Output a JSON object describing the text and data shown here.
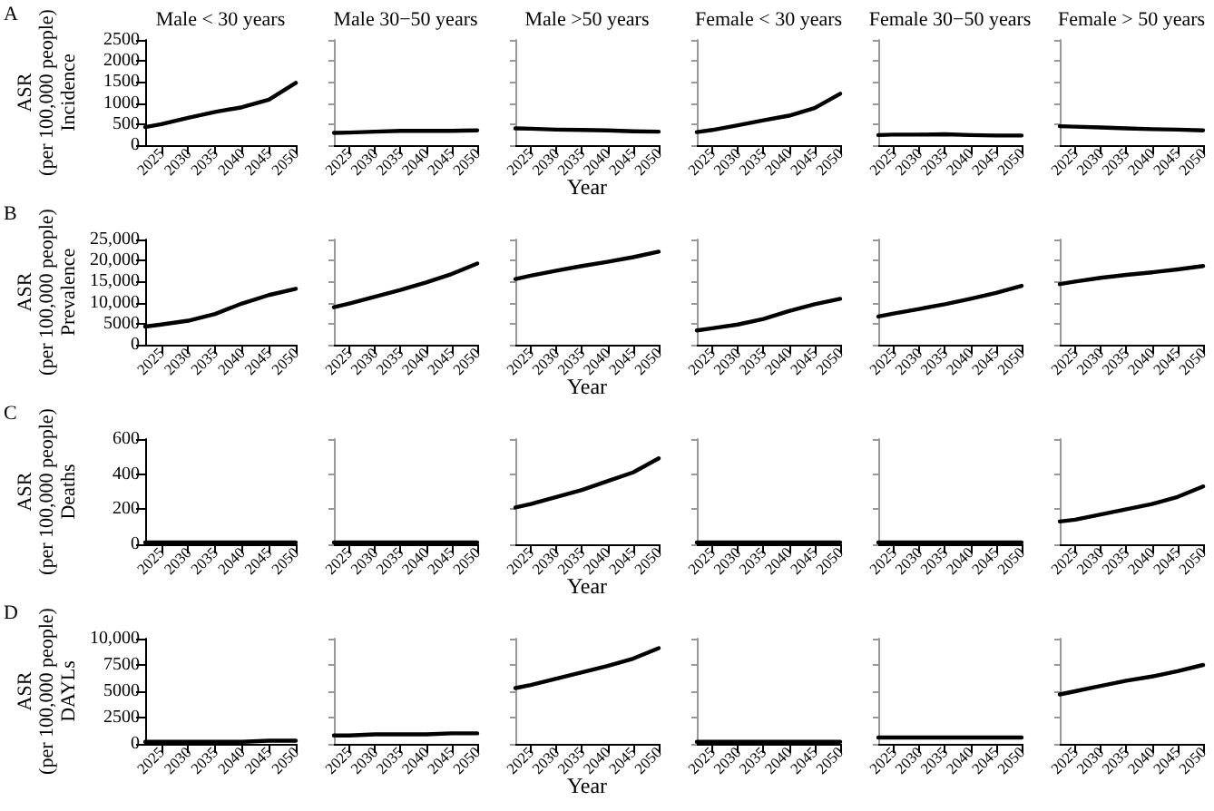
{
  "chart_data": [
    {
      "type": "line",
      "title": "Male < 30 years",
      "ylabel": "ASR\n(per 100,000 people)\nIncidence",
      "annotations": [
        "A"
      ],
      "x": [
        2022,
        2025,
        2030,
        2035,
        2040,
        2045,
        2050
      ],
      "values": [
        430,
        500,
        650,
        790,
        900,
        1080,
        1480
      ],
      "color": "#000000",
      "marker": "none",
      "xlim": [
        2022,
        2050
      ],
      "xticks": [
        2025,
        2030,
        2035,
        2040,
        2045,
        2050
      ],
      "ylim": [
        0,
        2500
      ],
      "yticks": [
        0,
        500,
        1000,
        1500,
        2000,
        2500
      ]
    },
    {
      "type": "line",
      "title": "Male 30−50 years",
      "x": [
        2022,
        2025,
        2030,
        2035,
        2040,
        2045,
        2050
      ],
      "values": [
        290,
        300,
        320,
        340,
        340,
        340,
        350
      ],
      "color": "#000000",
      "marker": "none",
      "xlim": [
        2022,
        2050
      ],
      "xticks": [
        2025,
        2030,
        2035,
        2040,
        2045,
        2050
      ],
      "ylim": [
        0,
        2500
      ],
      "yticks": [
        0,
        500,
        1000,
        1500,
        2000,
        2500
      ],
      "tick_labels": "x"
    },
    {
      "type": "line",
      "title": "Male >50 years",
      "xlabel": "Year",
      "x": [
        2022,
        2025,
        2030,
        2035,
        2040,
        2045,
        2050
      ],
      "values": [
        400,
        390,
        370,
        360,
        350,
        330,
        320
      ],
      "color": "#000000",
      "marker": "none",
      "xlim": [
        2022,
        2050
      ],
      "xticks": [
        2025,
        2030,
        2035,
        2040,
        2045,
        2050
      ],
      "ylim": [
        0,
        2500
      ],
      "yticks": [
        0,
        500,
        1000,
        1500,
        2000,
        2500
      ],
      "tick_labels": "x"
    },
    {
      "type": "line",
      "title": "Female < 30 years",
      "x": [
        2022,
        2025,
        2030,
        2035,
        2040,
        2045,
        2050
      ],
      "values": [
        310,
        360,
        470,
        590,
        700,
        880,
        1220
      ],
      "color": "#000000",
      "marker": "none",
      "xlim": [
        2022,
        2050
      ],
      "xticks": [
        2025,
        2030,
        2035,
        2040,
        2045,
        2050
      ],
      "ylim": [
        0,
        2500
      ],
      "yticks": [
        0,
        500,
        1000,
        1500,
        2000,
        2500
      ],
      "tick_labels": "x"
    },
    {
      "type": "line",
      "title": "Female 30−50 years",
      "x": [
        2022,
        2025,
        2030,
        2035,
        2040,
        2045,
        2050
      ],
      "values": [
        240,
        250,
        250,
        260,
        240,
        230,
        230
      ],
      "color": "#000000",
      "marker": "none",
      "xlim": [
        2022,
        2050
      ],
      "xticks": [
        2025,
        2030,
        2035,
        2040,
        2045,
        2050
      ],
      "ylim": [
        0,
        2500
      ],
      "yticks": [
        0,
        500,
        1000,
        1500,
        2000,
        2500
      ],
      "tick_labels": "x"
    },
    {
      "type": "line",
      "title": "Female > 50 years",
      "x": [
        2022,
        2025,
        2030,
        2035,
        2040,
        2045,
        2050
      ],
      "values": [
        450,
        440,
        420,
        400,
        380,
        370,
        350
      ],
      "color": "#000000",
      "marker": "none",
      "xlim": [
        2022,
        2050
      ],
      "xticks": [
        2025,
        2030,
        2035,
        2040,
        2045,
        2050
      ],
      "ylim": [
        0,
        2500
      ],
      "yticks": [
        0,
        500,
        1000,
        1500,
        2000,
        2500
      ],
      "tick_labels": "x"
    },
    {
      "type": "line",
      "ylabel": "ASR\n(per 100,000 people)\nPrevalence",
      "annotations": [
        "B"
      ],
      "x": [
        2022,
        2025,
        2030,
        2035,
        2040,
        2045,
        2050
      ],
      "values": [
        4300,
        4800,
        5700,
        7300,
        9800,
        11800,
        13300
      ],
      "color": "#000000",
      "marker": "none",
      "xlim": [
        2022,
        2050
      ],
      "xticks": [
        2025,
        2030,
        2035,
        2040,
        2045,
        2050
      ],
      "ylim": [
        0,
        25000
      ],
      "yticks": [
        0,
        5000,
        {
          "value": 10000,
          "label": "10,000"
        },
        {
          "value": 15000,
          "label": "15,000"
        },
        {
          "value": 20000,
          "label": "20,000"
        },
        {
          "value": 25000,
          "label": "25,000"
        }
      ]
    },
    {
      "type": "line",
      "x": [
        2022,
        2025,
        2030,
        2035,
        2040,
        2045,
        2050
      ],
      "values": [
        8900,
        9800,
        11400,
        13000,
        14800,
        16800,
        19300
      ],
      "color": "#000000",
      "marker": "none",
      "xlim": [
        2022,
        2050
      ],
      "xticks": [
        2025,
        2030,
        2035,
        2040,
        2045,
        2050
      ],
      "ylim": [
        0,
        25000
      ],
      "yticks": [
        0,
        5000,
        10000,
        15000,
        20000,
        25000
      ],
      "tick_labels": "x"
    },
    {
      "type": "line",
      "xlabel": "Year",
      "x": [
        2022,
        2025,
        2030,
        2035,
        2040,
        2045,
        2050
      ],
      "values": [
        15600,
        16400,
        17600,
        18700,
        19700,
        20800,
        22100
      ],
      "color": "#000000",
      "marker": "none",
      "xlim": [
        2022,
        2050
      ],
      "xticks": [
        2025,
        2030,
        2035,
        2040,
        2045,
        2050
      ],
      "ylim": [
        0,
        25000
      ],
      "yticks": [
        0,
        5000,
        10000,
        15000,
        20000,
        25000
      ],
      "tick_labels": "x"
    },
    {
      "type": "line",
      "x": [
        2022,
        2025,
        2030,
        2035,
        2040,
        2045,
        2050
      ],
      "values": [
        3400,
        3900,
        4800,
        6100,
        8000,
        9600,
        10900
      ],
      "color": "#000000",
      "marker": "none",
      "xlim": [
        2022,
        2050
      ],
      "xticks": [
        2025,
        2030,
        2035,
        2040,
        2045,
        2050
      ],
      "ylim": [
        0,
        25000
      ],
      "yticks": [
        0,
        5000,
        10000,
        15000,
        20000,
        25000
      ],
      "tick_labels": "x"
    },
    {
      "type": "line",
      "x": [
        2022,
        2025,
        2030,
        2035,
        2040,
        2045,
        2050
      ],
      "values": [
        6700,
        7400,
        8500,
        9600,
        10900,
        12300,
        14000
      ],
      "color": "#000000",
      "marker": "none",
      "xlim": [
        2022,
        2050
      ],
      "xticks": [
        2025,
        2030,
        2035,
        2040,
        2045,
        2050
      ],
      "ylim": [
        0,
        25000
      ],
      "yticks": [
        0,
        5000,
        10000,
        15000,
        20000,
        25000
      ],
      "tick_labels": "x"
    },
    {
      "type": "line",
      "x": [
        2022,
        2025,
        2030,
        2035,
        2040,
        2045,
        2050
      ],
      "values": [
        14400,
        15000,
        15900,
        16600,
        17200,
        17900,
        18700
      ],
      "color": "#000000",
      "marker": "none",
      "xlim": [
        2022,
        2050
      ],
      "xticks": [
        2025,
        2030,
        2035,
        2040,
        2045,
        2050
      ],
      "ylim": [
        0,
        25000
      ],
      "yticks": [
        0,
        5000,
        10000,
        15000,
        20000,
        25000
      ],
      "tick_labels": "x"
    },
    {
      "type": "line",
      "ylabel": "ASR\n(per 100,000 people)\nDeaths",
      "annotations": [
        "C"
      ],
      "x": [
        2022,
        2025,
        2030,
        2035,
        2040,
        2045,
        2050
      ],
      "values": [
        10,
        10,
        10,
        10,
        10,
        10,
        10
      ],
      "color": "#000000",
      "marker": "none",
      "xlim": [
        2022,
        2050
      ],
      "xticks": [
        2025,
        2030,
        2035,
        2040,
        2045,
        2050
      ],
      "ylim": [
        0,
        600
      ],
      "yticks": [
        0,
        200,
        400,
        600
      ]
    },
    {
      "type": "line",
      "x": [
        2022,
        2025,
        2030,
        2035,
        2040,
        2045,
        2050
      ],
      "values": [
        10,
        10,
        10,
        10,
        10,
        10,
        10
      ],
      "color": "#000000",
      "marker": "none",
      "xlim": [
        2022,
        2050
      ],
      "xticks": [
        2025,
        2030,
        2035,
        2040,
        2045,
        2050
      ],
      "ylim": [
        0,
        600
      ],
      "yticks": [
        0,
        200,
        400,
        600
      ],
      "tick_labels": "x"
    },
    {
      "type": "line",
      "xlabel": "Year",
      "x": [
        2022,
        2025,
        2030,
        2035,
        2040,
        2045,
        2050
      ],
      "values": [
        210,
        230,
        270,
        310,
        360,
        410,
        490
      ],
      "color": "#000000",
      "marker": "none",
      "xlim": [
        2022,
        2050
      ],
      "xticks": [
        2025,
        2030,
        2035,
        2040,
        2045,
        2050
      ],
      "ylim": [
        0,
        600
      ],
      "yticks": [
        0,
        200,
        400,
        600
      ],
      "tick_labels": "x"
    },
    {
      "type": "line",
      "x": [
        2022,
        2025,
        2030,
        2035,
        2040,
        2045,
        2050
      ],
      "values": [
        10,
        10,
        10,
        10,
        10,
        10,
        10
      ],
      "color": "#000000",
      "marker": "none",
      "xlim": [
        2022,
        2050
      ],
      "xticks": [
        2025,
        2030,
        2035,
        2040,
        2045,
        2050
      ],
      "ylim": [
        0,
        600
      ],
      "yticks": [
        0,
        200,
        400,
        600
      ],
      "tick_labels": "x"
    },
    {
      "type": "line",
      "x": [
        2022,
        2025,
        2030,
        2035,
        2040,
        2045,
        2050
      ],
      "values": [
        10,
        10,
        10,
        10,
        10,
        10,
        10
      ],
      "color": "#000000",
      "marker": "none",
      "xlim": [
        2022,
        2050
      ],
      "xticks": [
        2025,
        2030,
        2035,
        2040,
        2045,
        2050
      ],
      "ylim": [
        0,
        600
      ],
      "yticks": [
        0,
        200,
        400,
        600
      ],
      "tick_labels": "x"
    },
    {
      "type": "line",
      "x": [
        2022,
        2025,
        2030,
        2035,
        2040,
        2045,
        2050
      ],
      "values": [
        130,
        140,
        170,
        200,
        230,
        270,
        330
      ],
      "color": "#000000",
      "marker": "none",
      "xlim": [
        2022,
        2050
      ],
      "xticks": [
        2025,
        2030,
        2035,
        2040,
        2045,
        2050
      ],
      "ylim": [
        0,
        600
      ],
      "yticks": [
        0,
        200,
        400,
        600
      ],
      "tick_labels": "x"
    },
    {
      "type": "line",
      "ylabel": "ASR\n(per 100,000 people)\nDAYLs",
      "annotations": [
        "D"
      ],
      "x": [
        2022,
        2025,
        2030,
        2035,
        2040,
        2045,
        2050
      ],
      "values": [
        200,
        200,
        200,
        200,
        200,
        300,
        300
      ],
      "color": "#000000",
      "marker": "none",
      "xlim": [
        2022,
        2050
      ],
      "xticks": [
        2025,
        2030,
        2035,
        2040,
        2045,
        2050
      ],
      "ylim": [
        0,
        10000
      ],
      "yticks": [
        0,
        2500,
        5000,
        7500,
        {
          "value": 10000,
          "label": "10,000"
        }
      ]
    },
    {
      "type": "line",
      "x": [
        2022,
        2025,
        2030,
        2035,
        2040,
        2045,
        2050
      ],
      "values": [
        800,
        800,
        900,
        900,
        900,
        1000,
        1000
      ],
      "color": "#000000",
      "marker": "none",
      "xlim": [
        2022,
        2050
      ],
      "xticks": [
        2025,
        2030,
        2035,
        2040,
        2045,
        2050
      ],
      "ylim": [
        0,
        10000
      ],
      "yticks": [
        0,
        2500,
        5000,
        7500,
        10000
      ],
      "tick_labels": "x"
    },
    {
      "type": "line",
      "xlabel": "Year",
      "x": [
        2022,
        2025,
        2030,
        2035,
        2040,
        2045,
        2050
      ],
      "values": [
        5300,
        5600,
        6200,
        6800,
        7400,
        8100,
        9100
      ],
      "color": "#000000",
      "marker": "none",
      "xlim": [
        2022,
        2050
      ],
      "xticks": [
        2025,
        2030,
        2035,
        2040,
        2045,
        2050
      ],
      "ylim": [
        0,
        10000
      ],
      "yticks": [
        0,
        2500,
        5000,
        7500,
        10000
      ],
      "tick_labels": "x"
    },
    {
      "type": "line",
      "x": [
        2022,
        2025,
        2030,
        2035,
        2040,
        2045,
        2050
      ],
      "values": [
        200,
        200,
        200,
        200,
        200,
        200,
        200
      ],
      "color": "#000000",
      "marker": "none",
      "xlim": [
        2022,
        2050
      ],
      "xticks": [
        2025,
        2030,
        2035,
        2040,
        2045,
        2050
      ],
      "ylim": [
        0,
        10000
      ],
      "yticks": [
        0,
        2500,
        5000,
        7500,
        10000
      ],
      "tick_labels": "x"
    },
    {
      "type": "line",
      "x": [
        2022,
        2025,
        2030,
        2035,
        2040,
        2045,
        2050
      ],
      "values": [
        600,
        600,
        600,
        600,
        600,
        600,
        600
      ],
      "color": "#000000",
      "marker": "none",
      "xlim": [
        2022,
        2050
      ],
      "xticks": [
        2025,
        2030,
        2035,
        2040,
        2045,
        2050
      ],
      "ylim": [
        0,
        10000
      ],
      "yticks": [
        0,
        2500,
        5000,
        7500,
        10000
      ],
      "tick_labels": "x"
    },
    {
      "type": "line",
      "x": [
        2022,
        2025,
        2030,
        2035,
        2040,
        2045,
        2050
      ],
      "values": [
        4700,
        5000,
        5500,
        6000,
        6400,
        6900,
        7500
      ],
      "color": "#000000",
      "marker": "none",
      "xlim": [
        2022,
        2050
      ],
      "xticks": [
        2025,
        2030,
        2035,
        2040,
        2045,
        2050
      ],
      "ylim": [
        0,
        10000
      ],
      "yticks": [
        0,
        2500,
        5000,
        7500,
        10000
      ],
      "tick_labels": "x"
    }
  ]
}
